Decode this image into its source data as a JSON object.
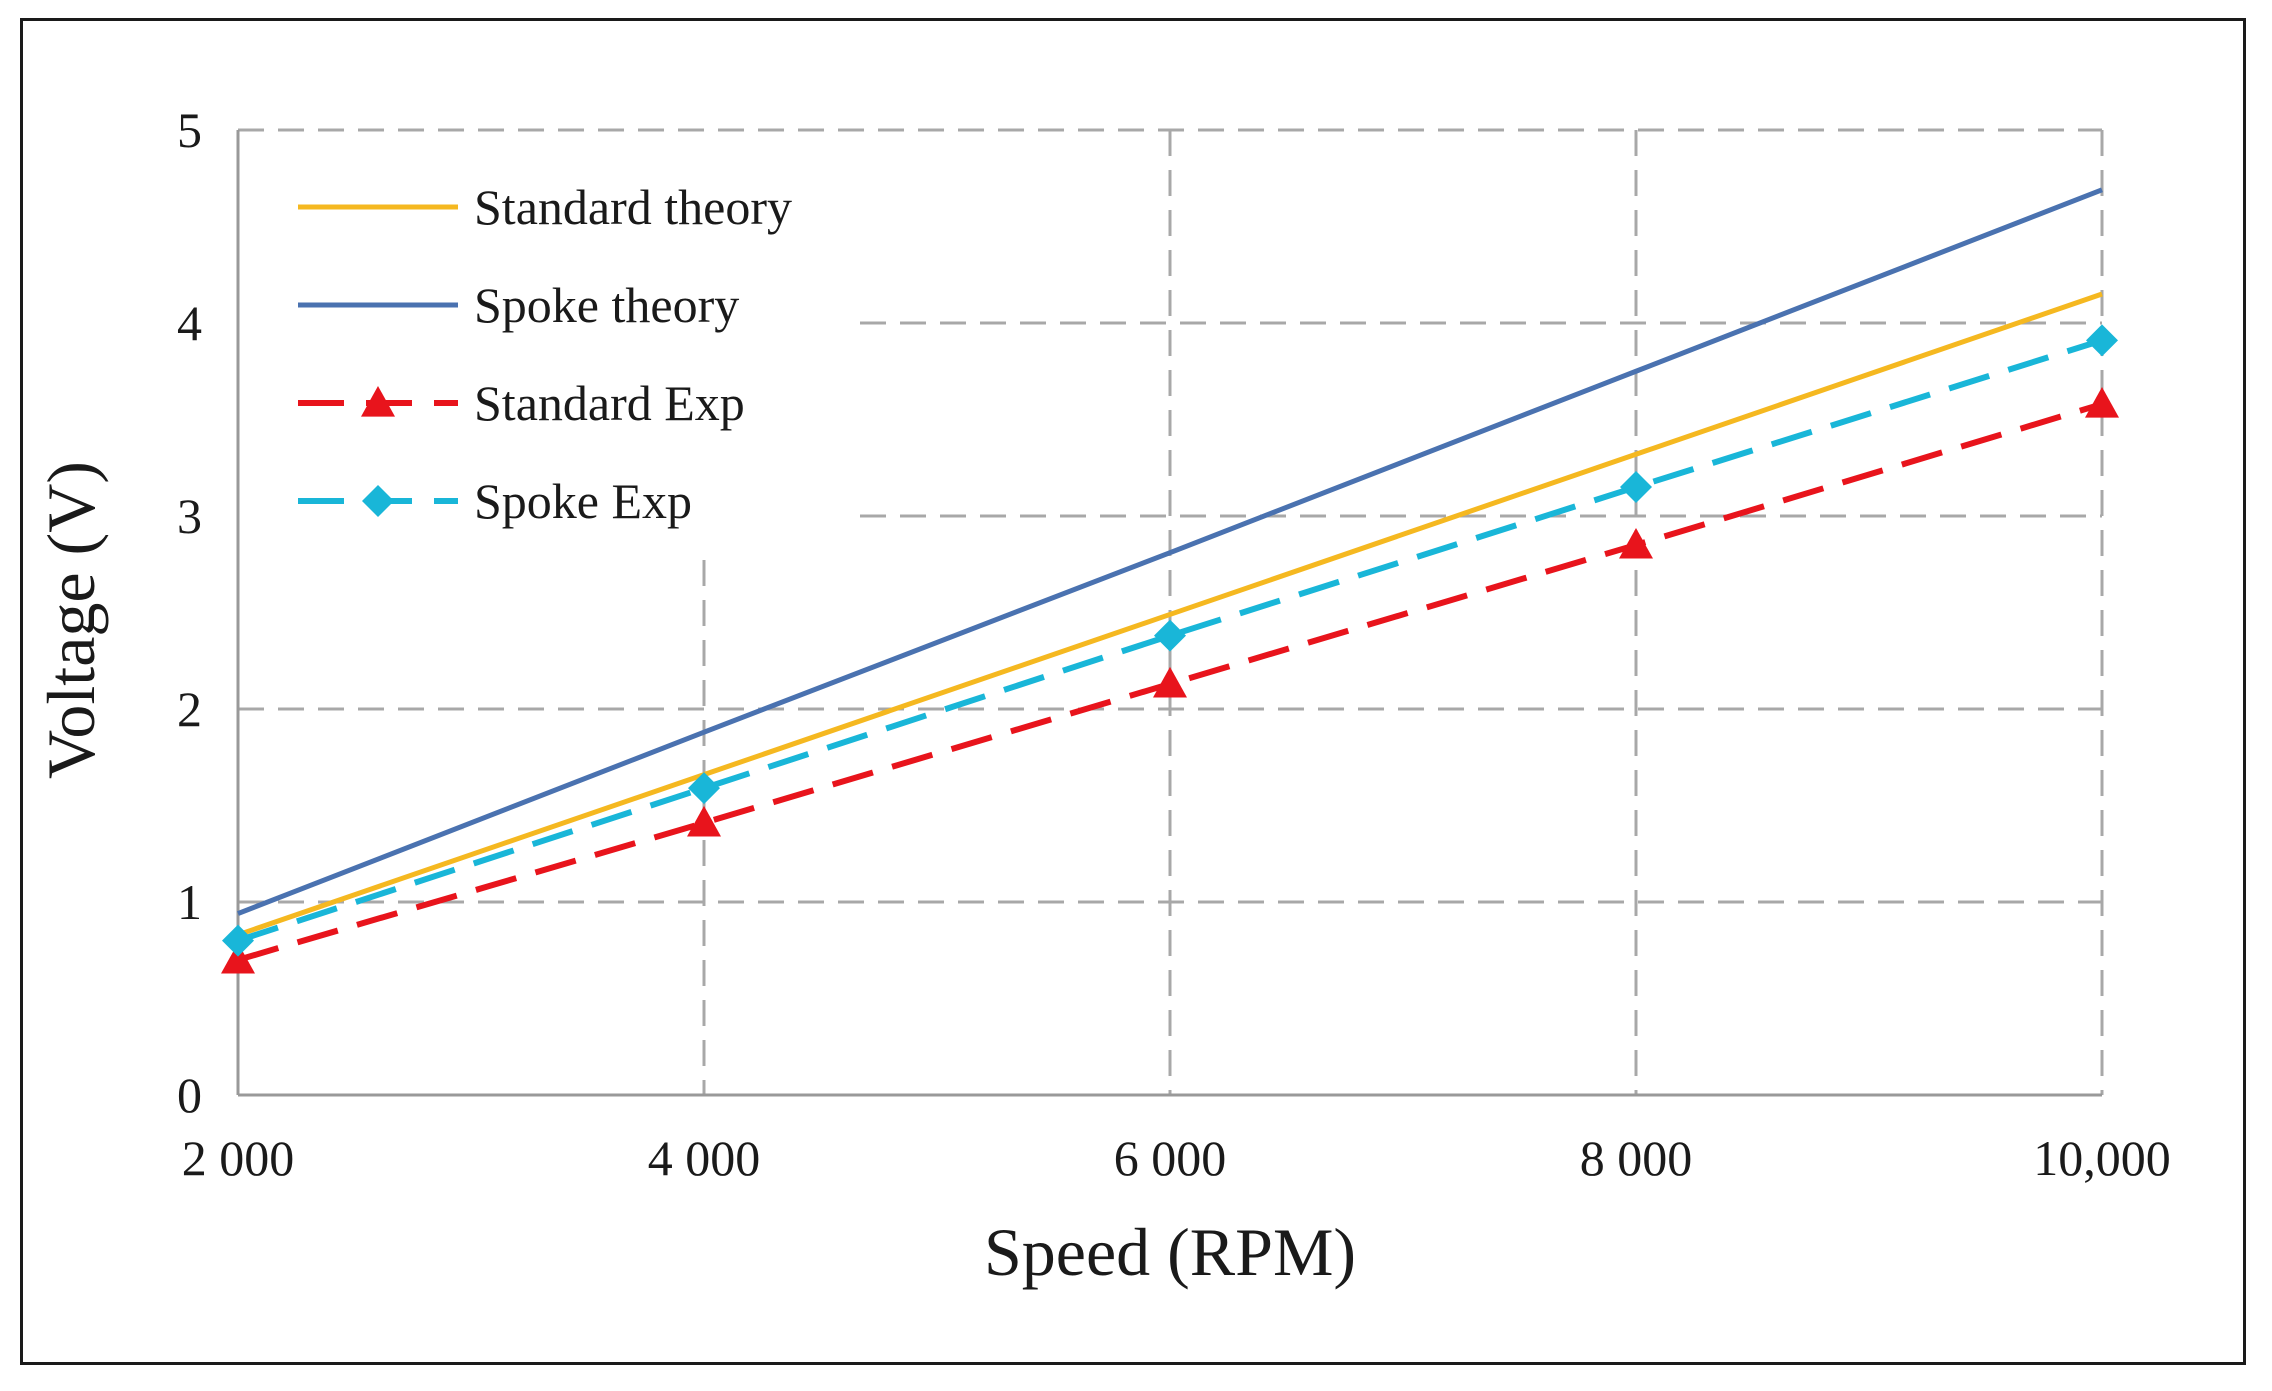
{
  "chart_data": {
    "type": "line",
    "title": "",
    "xlabel": "Speed (RPM)",
    "ylabel": "Voltage (V)",
    "x": [
      2000,
      4000,
      6000,
      8000,
      10000
    ],
    "x_tick_labels": [
      "2 000",
      "4 000",
      "6 000",
      "8 000",
      "10,000"
    ],
    "xlim": [
      2000,
      10000
    ],
    "y_ticks": [
      0,
      1,
      2,
      3,
      4,
      5
    ],
    "y_tick_labels": [
      "0",
      "1",
      "2",
      "3",
      "4",
      "5"
    ],
    "ylim": [
      0,
      5
    ],
    "grid": true,
    "legend_position": "top-left",
    "series": [
      {
        "name": "Standard theory",
        "color": "#F5B820",
        "style": "solid",
        "marker": "none",
        "values": [
          0.83,
          1.66,
          2.49,
          3.32,
          4.15
        ]
      },
      {
        "name": "Spoke theory",
        "color": "#4A72B0",
        "style": "solid",
        "marker": "none",
        "values": [
          0.94,
          1.88,
          2.81,
          3.75,
          4.69
        ]
      },
      {
        "name": "Standard Exp",
        "color": "#E8141C",
        "style": "dashed",
        "marker": "triangle",
        "values": [
          0.7,
          1.41,
          2.13,
          2.85,
          3.58
        ]
      },
      {
        "name": "Spoke Exp",
        "color": "#19B6D8",
        "style": "dashed",
        "marker": "diamond",
        "values": [
          0.8,
          1.59,
          2.38,
          3.15,
          3.91
        ]
      }
    ]
  }
}
